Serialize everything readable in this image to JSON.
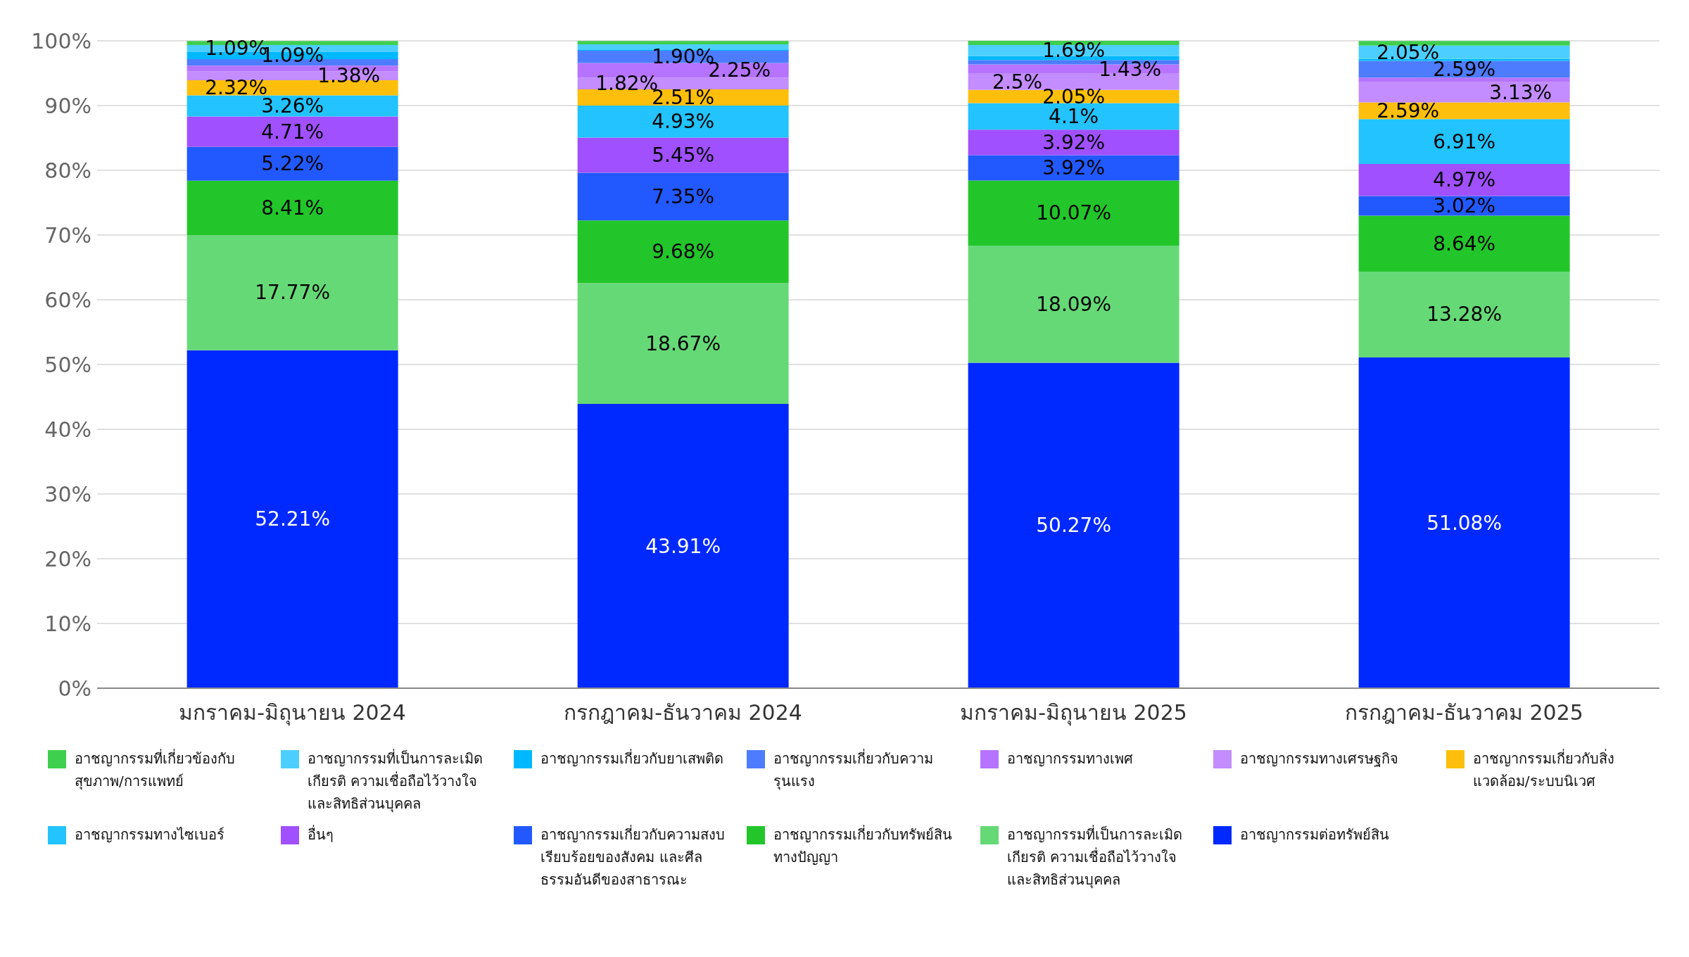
{
  "chart_data": {
    "type": "bar",
    "stacked": true,
    "categories": [
      "มกราคม-มิถุนายน 2024",
      "กรกฎาคม-ธันวาคม 2024",
      "มกราคม-มิถุนายน 2025",
      "กรกฎาคม-ธันวาคม 2025"
    ],
    "series": [
      {
        "name": "อาชญากรรมต่อทรัพย์สิน",
        "color": "#0029ff",
        "values": [
          52.21,
          43.91,
          50.27,
          51.08
        ],
        "value_labels": [
          "52.21%",
          "43.91%",
          "50.27%",
          "51.08%"
        ]
      },
      {
        "name": "อาชญากรรมที่เป็นการละเมิดเกียรติ ความเชื่อถือไว้วางใจ และสิทธิส่วนบุคคล",
        "color": "#66d977",
        "values": [
          17.77,
          18.67,
          18.09,
          13.28
        ],
        "value_labels": [
          "17.77%",
          "18.67%",
          "18.09%",
          "13.28%"
        ]
      },
      {
        "name": "อาชญากรรมเกี่ยวกับทรัพย์สินทางปัญญา",
        "color": "#22c62a",
        "values": [
          8.41,
          9.68,
          10.07,
          8.64
        ],
        "value_labels": [
          "8.41%",
          "9.68%",
          "10.07%",
          "8.64%"
        ]
      },
      {
        "name": "อาชญากรรมเกี่ยวกับความสงบเรียบร้อยของสังคม และศีลธรรมอันดีของสาธารณะ",
        "color": "#2259ff",
        "values": [
          5.22,
          7.35,
          3.92,
          3.02
        ],
        "value_labels": [
          "5.22%",
          "7.35%",
          "3.92%",
          "3.02%"
        ]
      },
      {
        "name": "อื่นๆ",
        "color": "#a050ff",
        "values": [
          4.71,
          5.45,
          3.92,
          4.97
        ],
        "value_labels": [
          "4.71%",
          "5.45%",
          "3.92%",
          "4.97%"
        ]
      },
      {
        "name": "อาชญากรรมทางไซเบอร์",
        "color": "#22c3ff",
        "values": [
          3.26,
          4.93,
          4.1,
          6.91
        ],
        "value_labels": [
          "3.26%",
          "4.93%",
          "4.1%",
          "6.91%"
        ]
      },
      {
        "name": "อาชญากรรมเกี่ยวกับสิ่งแวดล้อม/ระบบนิเวศ",
        "color": "#fdbf0b",
        "values": [
          2.32,
          2.51,
          2.05,
          2.59
        ],
        "value_labels": [
          "2.32%",
          "2.51%",
          "2.05%",
          "2.59%"
        ]
      },
      {
        "name": "อาชญากรรมทางเศรษฐกิจ",
        "color": "#c38cff",
        "values": [
          1.38,
          1.82,
          2.5,
          3.13
        ],
        "value_labels": [
          "1.38%",
          "1.82%",
          "2.5%",
          "3.13%"
        ]
      },
      {
        "name": "อาชญากรรมทางเพศ",
        "color": "#b573ff",
        "values": [
          0.9,
          2.25,
          1.43,
          0.7
        ],
        "value_labels": [
          null,
          "2.25%",
          "1.43%",
          null
        ]
      },
      {
        "name": "อาชญากรรมเกี่ยวกับความรุนแรง",
        "color": "#4d7cff",
        "values": [
          1.0,
          1.9,
          0.7,
          2.59
        ],
        "value_labels": [
          null,
          "1.90%",
          null,
          "2.59%"
        ]
      },
      {
        "name": "อาชญากรรมเกี่ยวกับยาเสพติด",
        "color": "#00b8ff",
        "values": [
          1.09,
          0.2,
          0.6,
          0.3
        ],
        "value_labels": [
          "1.09%",
          null,
          null,
          null
        ]
      },
      {
        "name": "อาชญากรรมที่เป็นการละเมิดเกียรติ ความเชื่อถือไว้วางใจ และสิทธิส่วนบุคคล",
        "color": "#4ccfff",
        "values": [
          1.09,
          0.8,
          1.69,
          2.05
        ],
        "value_labels": [
          "1.09%",
          null,
          "1.69%",
          "2.05%"
        ]
      },
      {
        "name": "อาชญากรรมที่เกี่ยวข้องกับสุขภาพ/การแพทย์",
        "color": "#3fcf4f",
        "values": [
          0.6,
          0.5,
          0.7,
          0.7
        ],
        "value_labels": [
          null,
          null,
          null,
          null
        ]
      }
    ],
    "ylim": [
      0,
      100
    ],
    "yticks": [
      {
        "value": 0,
        "label": "0%"
      },
      {
        "value": 10,
        "label": "10%"
      },
      {
        "value": 20,
        "label": "20%"
      },
      {
        "value": 30,
        "label": "30%"
      },
      {
        "value": 40,
        "label": "40%"
      },
      {
        "value": 50,
        "label": "50%"
      },
      {
        "value": 60,
        "label": "60%"
      },
      {
        "value": 70,
        "label": "70%"
      },
      {
        "value": 80,
        "label": "80%"
      },
      {
        "value": 90,
        "label": "90%"
      },
      {
        "value": 100,
        "label": "100%"
      }
    ],
    "grid": "y",
    "legend": "bottom"
  }
}
